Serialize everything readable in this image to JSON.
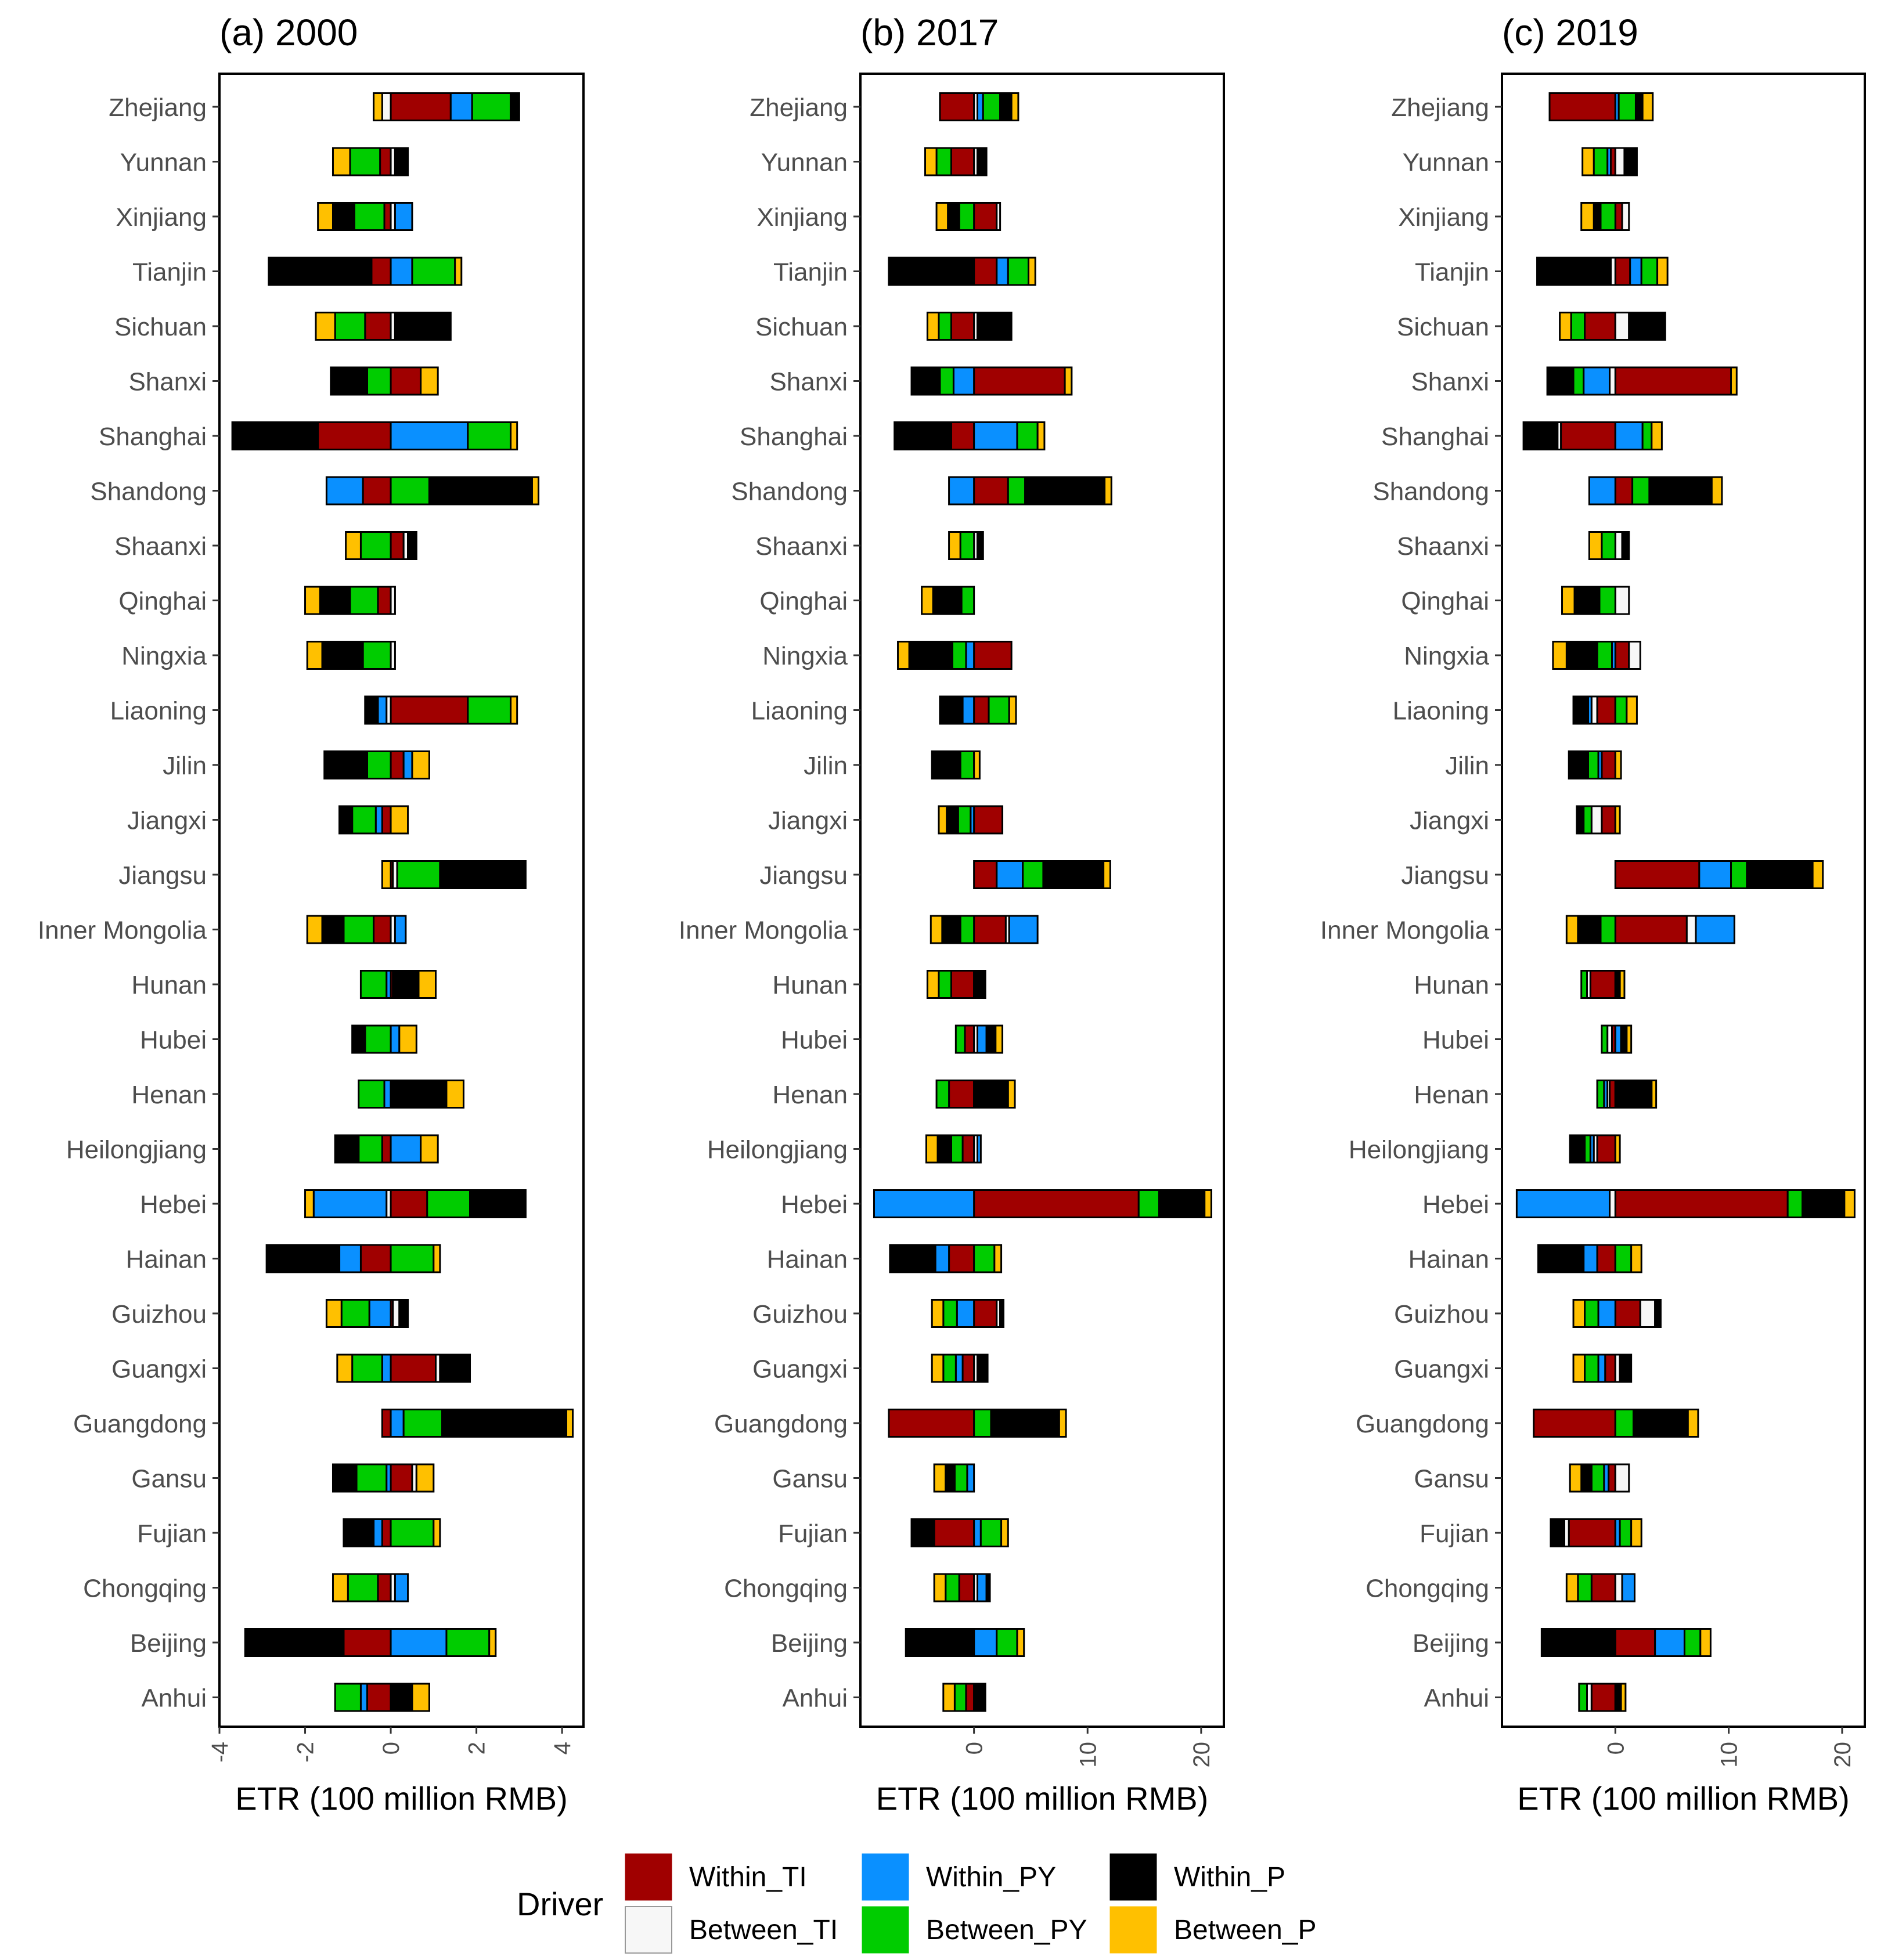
{
  "chart_data": {
    "type": "bar",
    "stacked": true,
    "orientation": "horizontal",
    "xlabel": "ETR (100 million RMB)",
    "legend": {
      "title": "Driver",
      "placement": "bottom",
      "items": [
        {
          "key": "Within_TI",
          "label": "Within_TI",
          "color": "#A00000"
        },
        {
          "key": "Between_TI",
          "label": "Between_TI",
          "color": "#F7F7F7"
        },
        {
          "key": "Within_PY",
          "label": "Within_PY",
          "color": "#0A90FF"
        },
        {
          "key": "Between_PY",
          "label": "Between_PY",
          "color": "#00CC00"
        },
        {
          "key": "Within_P",
          "label": "Within_P",
          "color": "#000000"
        },
        {
          "key": "Between_P",
          "label": "Between_P",
          "color": "#FFC000"
        }
      ]
    },
    "categories": [
      "Zhejiang",
      "Yunnan",
      "Xinjiang",
      "Tianjin",
      "Sichuan",
      "Shanxi",
      "Shanghai",
      "Shandong",
      "Shaanxi",
      "Qinghai",
      "Ningxia",
      "Liaoning",
      "Jilin",
      "Jiangxi",
      "Jiangsu",
      "Inner Mongolia",
      "Hunan",
      "Hubei",
      "Henan",
      "Heilongjiang",
      "Hebei",
      "Hainan",
      "Guizhou",
      "Guangxi",
      "Guangdong",
      "Gansu",
      "Fujian",
      "Chongqing",
      "Beijing",
      "Anhui"
    ],
    "panels": [
      {
        "title": "(a) 2000",
        "xlim": [
          -4,
          4.5
        ],
        "xticks": [
          -4,
          -2,
          0,
          2,
          4
        ],
        "xtick_labels": [
          "-4",
          "-2",
          "0",
          "2",
          "4"
        ],
        "series": [
          {
            "name": "Within_TI",
            "values": [
              1.4,
              -0.25,
              -0.15,
              -0.45,
              -0.6,
              0.7,
              -1.7,
              -0.65,
              0.3,
              -0.3,
              0,
              1.8,
              0.3,
              -0.2,
              0.05,
              -0.4,
              0.05,
              0,
              0,
              -0.2,
              0.85,
              -0.7,
              0.05,
              1.05,
              -0.2,
              0.5,
              -0.2,
              -0.3,
              -1.1,
              -0.55
            ]
          },
          {
            "name": "Between_TI",
            "values": [
              -0.2,
              0.1,
              0.1,
              0,
              0.1,
              0,
              0,
              0,
              0.1,
              0.1,
              0.1,
              -0.1,
              0,
              0,
              0.1,
              0.1,
              0,
              0,
              0,
              0,
              -0.1,
              0,
              0.15,
              0.1,
              0,
              0.1,
              0,
              0.1,
              0,
              0
            ]
          },
          {
            "name": "Within_PY",
            "values": [
              0.5,
              0,
              0.4,
              0.5,
              0,
              0,
              1.8,
              -0.85,
              0,
              0,
              0,
              -0.2,
              0.2,
              -0.15,
              0,
              0.25,
              -0.1,
              0.2,
              -0.15,
              0.7,
              -1.7,
              -0.5,
              -0.5,
              -0.2,
              0.3,
              -0.1,
              -0.2,
              0.3,
              1.3,
              -0.15
            ]
          },
          {
            "name": "Between_PY",
            "values": [
              0.9,
              -0.7,
              -0.7,
              1,
              -0.7,
              -0.55,
              1,
              0.9,
              -0.7,
              -0.65,
              -0.65,
              1,
              -0.55,
              -0.55,
              1,
              -0.7,
              -0.6,
              -0.6,
              -0.6,
              -0.55,
              1,
              1,
              -0.65,
              -0.7,
              0.9,
              -0.7,
              1,
              -0.7,
              1,
              -0.6
            ]
          },
          {
            "name": "Within_P",
            "values": [
              0.2,
              0.3,
              -0.5,
              -2.4,
              1.3,
              -0.85,
              -2,
              2.4,
              0.2,
              -0.7,
              -0.95,
              -0.3,
              -1,
              -0.3,
              2,
              -0.5,
              0.6,
              -0.3,
              1.3,
              -0.55,
              1.3,
              -1.7,
              0.2,
              0.7,
              2.9,
              -0.55,
              -0.7,
              0,
              -2.3,
              0.5
            ]
          },
          {
            "name": "Between_P",
            "values": [
              -0.2,
              -0.4,
              -0.35,
              0.15,
              -0.45,
              0.4,
              0.15,
              0.15,
              -0.35,
              -0.35,
              -0.35,
              0.15,
              0.4,
              0.4,
              -0.2,
              -0.35,
              0.4,
              0.4,
              0.4,
              0.4,
              -0.2,
              0.15,
              -0.35,
              -0.35,
              0.15,
              0.4,
              0.15,
              -0.35,
              0.15,
              0.4
            ]
          }
        ]
      },
      {
        "title": "(b) 2017",
        "xlim": [
          -10,
          22
        ],
        "xticks": [
          0,
          10,
          20
        ],
        "xtick_labels": [
          "0",
          "10",
          "20"
        ],
        "series": [
          {
            "name": "Within_TI",
            "values": [
              -3,
              -2,
              2,
              2,
              -2,
              8,
              -2,
              3,
              0,
              0,
              3.3,
              1.3,
              0,
              2.5,
              2,
              2.8,
              -2,
              -0.8,
              -2.2,
              -1,
              14.5,
              -2.2,
              2,
              -1,
              -7.5,
              0,
              -3.5,
              -1.3,
              0,
              -0.7
            ]
          },
          {
            "name": "Between_TI",
            "values": [
              0.3,
              0.3,
              0.3,
              0,
              0.3,
              0,
              0,
              0,
              0.3,
              0,
              0,
              0,
              0,
              0,
              0,
              0.3,
              0,
              0.3,
              0,
              0.3,
              0,
              0,
              0.3,
              0.3,
              0,
              0,
              0,
              0.3,
              0,
              0
            ]
          },
          {
            "name": "Within_PY",
            "values": [
              0.5,
              0,
              0,
              1,
              0,
              -1.8,
              3.8,
              -2.2,
              0,
              0,
              -0.7,
              -1,
              0,
              -0.3,
              2.3,
              2.5,
              0,
              0.8,
              0,
              0.3,
              -8.8,
              -1.2,
              -1.5,
              -0.6,
              0,
              -0.6,
              0.6,
              0.8,
              2,
              0
            ]
          },
          {
            "name": "Between_PY",
            "values": [
              1.5,
              -1.3,
              -1.3,
              1.8,
              -1.1,
              -1.2,
              1.8,
              1.5,
              -1.2,
              -1.1,
              -1.2,
              1.8,
              -1.2,
              -1.1,
              1.8,
              -1.2,
              -1.1,
              -0.8,
              -1.1,
              -1,
              1.8,
              1.8,
              -1.2,
              -1.1,
              1.5,
              -1.1,
              1.8,
              -1.2,
              1.8,
              -1
            ]
          },
          {
            "name": "Within_P",
            "values": [
              1,
              0.8,
              -1,
              -7.5,
              3,
              -2.5,
              -5,
              7,
              0.5,
              -2.5,
              -3.8,
              -2,
              -2.5,
              -1,
              5.3,
              -1.6,
              1,
              0.8,
              3,
              -1.2,
              4,
              -4,
              0.3,
              0.9,
              6,
              -0.8,
              -2,
              0.3,
              -6,
              1
            ]
          },
          {
            "name": "Between_P",
            "values": [
              0.6,
              -1,
              -1,
              0.6,
              -1,
              0.6,
              0.6,
              0.6,
              -1,
              -1,
              -1,
              0.6,
              0.5,
              -0.7,
              0.6,
              -1,
              -1,
              0.6,
              0.6,
              -1,
              0.6,
              0.6,
              -1,
              -1,
              0.6,
              -1,
              0.6,
              -1,
              0.6,
              -1
            ]
          }
        ]
      },
      {
        "title": "(c) 2019",
        "xlim": [
          -10,
          22
        ],
        "xticks": [
          0,
          10,
          20
        ],
        "xtick_labels": [
          "0",
          "10",
          "20"
        ],
        "series": [
          {
            "name": "Within_TI",
            "values": [
              -5.8,
              -0.4,
              0.6,
              1.3,
              -2.7,
              10.2,
              -4.8,
              1.5,
              0,
              0,
              1.2,
              -1.6,
              -1.2,
              -1.2,
              7.4,
              6.3,
              -2.2,
              -0.3,
              -0.5,
              -1.6,
              15.2,
              -1.6,
              2.2,
              -0.9,
              -7.2,
              -0.6,
              -4.1,
              -2.1,
              3.5,
              -2.1
            ]
          },
          {
            "name": "Between_TI",
            "values": [
              0,
              0.8,
              0.6,
              -0.4,
              1.2,
              -0.5,
              -0.3,
              0,
              0.6,
              1.2,
              1,
              -0.5,
              0,
              -0.9,
              0,
              0.8,
              -0.3,
              -0.4,
              -0.2,
              -0.3,
              -0.5,
              0,
              1.3,
              0.4,
              0,
              1.2,
              -0.4,
              0.6,
              0,
              -0.4
            ]
          },
          {
            "name": "Within_PY",
            "values": [
              0.3,
              -0.3,
              0,
              1,
              0,
              -2.3,
              2.4,
              -2.3,
              0,
              0,
              -0.3,
              -0.3,
              -0.3,
              0,
              2.8,
              3.4,
              0,
              0.5,
              -0.3,
              -0.3,
              -8.2,
              -1.2,
              -1.5,
              -0.6,
              0,
              -0.4,
              0.4,
              1.1,
              2.6,
              0
            ]
          },
          {
            "name": "Between_PY",
            "values": [
              1.5,
              -1.2,
              -1.3,
              1.4,
              -1.2,
              -0.9,
              0.8,
              1.5,
              -1.2,
              -1.4,
              -1.3,
              1,
              -0.9,
              -0.7,
              1.4,
              -1.3,
              -0.5,
              -0.5,
              -0.6,
              -0.5,
              1.3,
              1.4,
              -1.2,
              -1.2,
              1.6,
              -1.1,
              1,
              -1.2,
              1.4,
              -0.7
            ]
          },
          {
            "name": "Within_P",
            "values": [
              0.6,
              1.1,
              -0.6,
              -6.5,
              3.2,
              -2.3,
              -3,
              5.5,
              0.6,
              -2.2,
              -2.7,
              -1.3,
              -1.7,
              -0.6,
              5.8,
              -2,
              0.4,
              0.5,
              3.2,
              -1.3,
              3.7,
              -4,
              0.5,
              1,
              4.8,
              -0.9,
              -1.2,
              0,
              -6.5,
              0.5
            ]
          },
          {
            "name": "Between_P",
            "values": [
              0.9,
              -1,
              -1.1,
              0.9,
              -1,
              0.5,
              0.9,
              0.9,
              -1.1,
              -1.1,
              -1.2,
              0.9,
              0.5,
              0.4,
              0.9,
              -1,
              0.4,
              0.4,
              0.4,
              0.4,
              0.9,
              0.9,
              -1,
              -1,
              0.9,
              -1,
              0.9,
              -1,
              0.9,
              0.4
            ]
          }
        ]
      }
    ]
  }
}
